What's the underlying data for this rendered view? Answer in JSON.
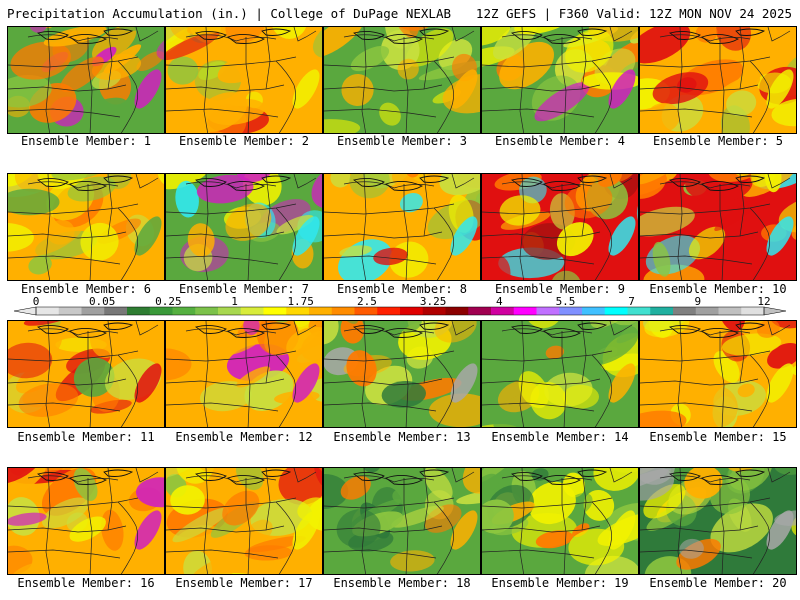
{
  "header": {
    "left": "Precipitation Accumulation (in.) | College of DuPage NEXLAB",
    "right": "12Z GEFS | F360 Valid: 12Z MON NOV 24 2025"
  },
  "panels": [
    {
      "label": "Ensemble Member: 1"
    },
    {
      "label": "Ensemble Member: 2"
    },
    {
      "label": "Ensemble Member: 3"
    },
    {
      "label": "Ensemble Member: 4"
    },
    {
      "label": "Ensemble Member: 5"
    },
    {
      "label": "Ensemble Member: 6"
    },
    {
      "label": "Ensemble Member: 7"
    },
    {
      "label": "Ensemble Member: 8"
    },
    {
      "label": "Ensemble Member: 9"
    },
    {
      "label": "Ensemble Member: 10"
    },
    {
      "label": "Ensemble Member: 11"
    },
    {
      "label": "Ensemble Member: 12"
    },
    {
      "label": "Ensemble Member: 13"
    },
    {
      "label": "Ensemble Member: 14"
    },
    {
      "label": "Ensemble Member: 15"
    },
    {
      "label": "Ensemble Member: 16"
    },
    {
      "label": "Ensemble Member: 17"
    },
    {
      "label": "Ensemble Member: 18"
    },
    {
      "label": "Ensemble Member: 19"
    },
    {
      "label": "Ensemble Member: 20"
    }
  ],
  "colorbar": {
    "tick_labels": [
      "0",
      "0.05",
      "0.25",
      "1",
      "1.75",
      "2.5",
      "3.25",
      "4",
      "5.5",
      "7",
      "9",
      "12"
    ],
    "colors": [
      "#e6e6e6",
      "#c8c8c8",
      "#a0a0a0",
      "#787878",
      "#2e7d32",
      "#3a9a3a",
      "#55b040",
      "#7cc24a",
      "#a8d84f",
      "#d8ec3a",
      "#ffff00",
      "#ffd700",
      "#ffb000",
      "#ff8c00",
      "#ff5a00",
      "#ff2000",
      "#e00000",
      "#b00000",
      "#8b0000",
      "#a00050",
      "#d000a0",
      "#ff00ff",
      "#c070ff",
      "#8090ff",
      "#40c0ff",
      "#00ffff",
      "#40e0d0",
      "#20b0a0",
      "#808080",
      "#a0a0a0",
      "#c0c0c0",
      "#e0e0e0"
    ]
  },
  "colors": {
    "green_dark": "#2f7a3a",
    "green": "#5aa83e",
    "green_light": "#8cc63f",
    "yellow_green": "#c8e040",
    "yellow": "#f2f200",
    "orange": "#ffb000",
    "orange_dark": "#ff7a00",
    "red": "#e01010",
    "dark_red": "#a01010",
    "magenta": "#d020c0",
    "cyan": "#30e8f0",
    "gray": "#a8a8a8"
  }
}
